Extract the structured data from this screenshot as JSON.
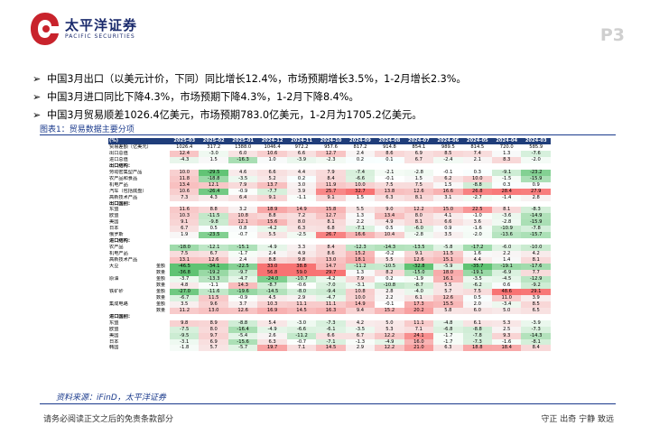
{
  "header": {
    "brand_cn": "太平洋证券",
    "brand_en": "PACIFIC SECURITIES",
    "page_num": "P3"
  },
  "bullets": [
    "中国3月出口（以美元计价，下同）同比增长12.4%，市场预期增长3.5%，1-2月增长2.3%。",
    "中国3月进口同比下降4.3%，市场预期下降4.3%，1-2月下降8.4%。",
    "中国3月贸易顺差1026.4亿美元，市场预期783.0亿美元，1-2月为1705.2亿美元。"
  ],
  "figure_title": "图表1：贸易数据主要分项",
  "table": {
    "corner": "(%)",
    "columns": [
      "2025-03",
      "2025-02",
      "2025-01",
      "2024-12",
      "2024-11",
      "2024-10",
      "2024-09",
      "2024-08",
      "2024-07",
      "2024-06",
      "2024-05",
      "2024-04",
      "2024-03"
    ],
    "rows": [
      {
        "label": "贸易差额（亿美元）",
        "sub": "",
        "v": [
          "1026.4",
          "317.2",
          "1388.0",
          "1046.4",
          "972.2",
          "957.6",
          "817.2",
          "914.8",
          "854.1",
          "989.5",
          "814.5",
          "720.0",
          "585.9"
        ]
      },
      {
        "label": "出口总值",
        "sub": "",
        "v": [
          "12.4",
          "-3.0",
          "6.0",
          "10.6",
          "6.6",
          "12.7",
          "2.4",
          "8.6",
          "6.9",
          "8.5",
          "7.4",
          "1.3",
          "-7.6"
        ]
      },
      {
        "label": "进口总值",
        "sub": "",
        "v": [
          "-4.3",
          "1.5",
          "-16.3",
          "1.0",
          "-3.9",
          "-2.3",
          "0.2",
          "0.1",
          "6.7",
          "-2.4",
          "2.1",
          "8.3",
          "-2.0"
        ]
      },
      {
        "label": "出口结构：",
        "sub": "",
        "section": true,
        "v": [
          "",
          "",
          "",
          "",
          "",
          "",
          "",
          "",
          "",
          "",
          "",
          "",
          ""
        ]
      },
      {
        "label": "劳动密集型产品",
        "sub": "",
        "v": [
          "10.0",
          "-29.5",
          "4.6",
          "6.6",
          "4.4",
          "7.9",
          "-7.4",
          "-2.1",
          "-2.8",
          "-0.1",
          "0.3",
          "-9.1",
          "-23.2"
        ]
      },
      {
        "label": "农产品和食品",
        "sub": "",
        "v": [
          "11.8",
          "-18.8",
          "-3.5",
          "5.2",
          "0.2",
          "8.4",
          "-6.6",
          "-0.1",
          "1.5",
          "6.2",
          "10.0",
          "-1.5",
          "-15.9"
        ]
      },
      {
        "label": "机电产品",
        "sub": "",
        "v": [
          "13.4",
          "12.1",
          "7.9",
          "13.7",
          "3.0",
          "11.9",
          "10.0",
          "7.5",
          "7.5",
          "1.5",
          "-8.8",
          "0.3",
          "0.9"
        ]
      },
      {
        "label": "汽车（包括底盘）",
        "sub": "",
        "v": [
          "10.6",
          "-26.4",
          "-0.9",
          "-7.7",
          "3.9",
          "25.7",
          "32.7",
          "13.8",
          "12.6",
          "16.6",
          "26.8",
          "28.4",
          "27.9"
        ]
      },
      {
        "label": "高新技术产品",
        "sub": "",
        "v": [
          "7.3",
          "4.3",
          "6.4",
          "9.1",
          "-1.1",
          "9.1",
          "1.5",
          "6.3",
          "8.1",
          "3.1",
          "-2.7",
          "-1.4",
          "2.8"
        ]
      },
      {
        "label": "出口国别：",
        "sub": "",
        "section": true,
        "v": [
          "",
          "",
          "",
          "",
          "",
          "",
          "",
          "",
          "",
          "",
          "",
          "",
          ""
        ]
      },
      {
        "label": "东盟",
        "sub": "",
        "v": [
          "11.6",
          "8.8",
          "3.2",
          "18.9",
          "14.9",
          "15.8",
          "5.5",
          "9.0",
          "12.2",
          "15.0",
          "22.5",
          "8.1",
          "-8.3"
        ]
      },
      {
        "label": "欧盟",
        "sub": "",
        "v": [
          "10.3",
          "-11.5",
          "10.8",
          "8.8",
          "7.2",
          "12.7",
          "1.3",
          "13.4",
          "8.0",
          "4.1",
          "-1.0",
          "-3.6",
          "-14.9"
        ]
      },
      {
        "label": "美国",
        "sub": "",
        "v": [
          "9.1",
          "-9.8",
          "12.1",
          "15.6",
          "8.0",
          "8.1",
          "2.2",
          "4.9",
          "8.1",
          "6.6",
          "3.6",
          "-2.8",
          "-15.9"
        ]
      },
      {
        "label": "日本",
        "sub": "",
        "v": [
          "6.7",
          "0.5",
          "0.8",
          "-4.2",
          "6.3",
          "6.8",
          "-7.1",
          "0.5",
          "-6.0",
          "0.9",
          "-1.6",
          "-10.9",
          "-7.8"
        ]
      },
      {
        "label": "俄罗斯",
        "sub": "",
        "v": [
          "1.9",
          "-23.5",
          "-0.7",
          "5.5",
          "-2.5",
          "26.7",
          "16.6",
          "10.4",
          "-2.8",
          "3.5",
          "-2.0",
          "-13.6",
          "-15.7"
        ]
      },
      {
        "label": "进口结构：",
        "sub": "",
        "section": true,
        "v": [
          "",
          "",
          "",
          "",
          "",
          "",
          "",
          "",
          "",
          "",
          "",
          "",
          ""
        ]
      },
      {
        "label": "农产品",
        "sub": "",
        "v": [
          "-18.0",
          "-12.1",
          "-15.1",
          "-4.9",
          "3.3",
          "8.4",
          "-12.3",
          "-14.3",
          "-13.5",
          "-5.8",
          "-17.2",
          "-6.0",
          "-10.0"
        ]
      },
      {
        "label": "机电产品",
        "sub": "",
        "v": [
          "7.5",
          "6.7",
          "-1.7",
          "2.4",
          "4.9",
          "8.6",
          "15.2",
          "-0.2",
          "9.1",
          "11.5",
          "1.6",
          "2.2",
          "4.2"
        ]
      },
      {
        "label": "高新技术产品",
        "sub": "",
        "v": [
          "13.1",
          "12.6",
          "2.4",
          "8.8",
          "9.8",
          "13.0",
          "18.1",
          "5.5",
          "12.6",
          "15.1",
          "4.4",
          "1.4",
          "8.1"
        ]
      },
      {
        "label": "大豆",
        "sub": "金额",
        "v": [
          "-46.5",
          "-34.1",
          "-22.5",
          "33.0",
          "38.8",
          "14.7",
          "-11.2",
          "-10.5",
          "-32.8",
          "-5.9",
          "-35.7",
          "-19.1",
          "-17.6"
        ]
      },
      {
        "label": "",
        "sub": "数量",
        "v": [
          "-36.8",
          "-19.2",
          "-9.7",
          "56.8",
          "59.0",
          "29.7",
          "1.3",
          "8.2",
          "-15.0",
          "18.0",
          "-19.1",
          "-6.9",
          "7.7"
        ]
      },
      {
        "label": "原油",
        "sub": "金额",
        "v": [
          "-3.7",
          "-13.3",
          "-4.7",
          "-24.0",
          "-10.7",
          "-4.2",
          "7.9",
          "0.2",
          "-1.9",
          "16.1",
          "-3.5",
          "-4.5",
          "-12.9"
        ]
      },
      {
        "label": "",
        "sub": "数量",
        "v": [
          "4.8",
          "-1.1",
          "14.3",
          "-8.7",
          "-0.6",
          "-7.0",
          "-3.1",
          "-10.8",
          "-8.7",
          "5.5",
          "-6.2",
          "0.6",
          "-9.2"
        ]
      },
      {
        "label": "铁矿砂",
        "sub": "金额",
        "v": [
          "-27.0",
          "-11.6",
          "-19.6",
          "-14.5",
          "-8.0",
          "-9.4",
          "10.8",
          "2.8",
          "-4.0",
          "5.7",
          "7.5",
          "48.6",
          "29.1"
        ]
      },
      {
        "label": "",
        "sub": "数量",
        "v": [
          "-6.7",
          "11.5",
          "-0.9",
          "4.5",
          "2.9",
          "-4.7",
          "10.0",
          "2.2",
          "6.1",
          "12.6",
          "0.5",
          "11.0",
          "3.9"
        ]
      },
      {
        "label": "集成电路",
        "sub": "金额",
        "v": [
          "3.5",
          "9.6",
          "3.7",
          "10.3",
          "11.1",
          "11.1",
          "14.9",
          "-0.1",
          "17.3",
          "15.5",
          "2.0",
          "-3.4",
          "8.5"
        ]
      },
      {
        "label": "",
        "sub": "数量",
        "v": [
          "11.2",
          "13.0",
          "12.6",
          "16.9",
          "14.5",
          "16.3",
          "9.4",
          "15.2",
          "20.2",
          "5.8",
          "6.0",
          "5.0",
          "6.5"
        ]
      },
      {
        "label": "进口国别：",
        "sub": "",
        "section": true,
        "v": [
          "",
          "",
          "",
          "",
          "",
          "",
          "",
          "",
          "",
          "",
          "",
          "",
          ""
        ]
      },
      {
        "label": "东盟",
        "sub": "",
        "v": [
          "9.8",
          "8.9",
          "-8.8",
          "5.4",
          "-3.0",
          "-7.3",
          "4.2",
          "5.0",
          "11.1",
          "-4.8",
          "6.1",
          "5.3",
          "-3.9"
        ]
      },
      {
        "label": "欧盟",
        "sub": "",
        "v": [
          "-7.5",
          "8.0",
          "-16.4",
          "-4.9",
          "-6.6",
          "-6.1",
          "-3.5",
          "5.3",
          "7.1",
          "-6.8",
          "-8.8",
          "2.5",
          "-7.3"
        ]
      },
      {
        "label": "美国",
        "sub": "",
        "v": [
          "-9.5",
          "9.7",
          "-5.4",
          "2.6",
          "-11.2",
          "6.6",
          "6.7",
          "12.2",
          "24.1",
          "-1.7",
          "-7.8",
          "9.3",
          "-14.3"
        ]
      },
      {
        "label": "日本",
        "sub": "",
        "v": [
          "-3.1",
          "6.9",
          "-15.6",
          "6.3",
          "-0.7",
          "-7.1",
          "-1.3",
          "-4.9",
          "16.0",
          "-1.7",
          "-7.3",
          "-1.6",
          "-8.1"
        ]
      },
      {
        "label": "韩国",
        "sub": "",
        "v": [
          "-1.8",
          "5.7",
          "-5.7",
          "19.7",
          "7.1",
          "14.5",
          "2.9",
          "12.2",
          "21.0",
          "6.3",
          "18.8",
          "18.4",
          "8.4"
        ]
      }
    ]
  },
  "source": "资料来源：iFinD，太平洋证券",
  "footer": {
    "left": "请务必阅读正文之后的免责条款部分",
    "right": "守正  出奇  宁静  致远"
  },
  "colors": {
    "header_blue": "#1f3d7a",
    "brand_red": "#c8232c",
    "positive_red": "#f0787a",
    "negative_green": "#63be7b"
  }
}
